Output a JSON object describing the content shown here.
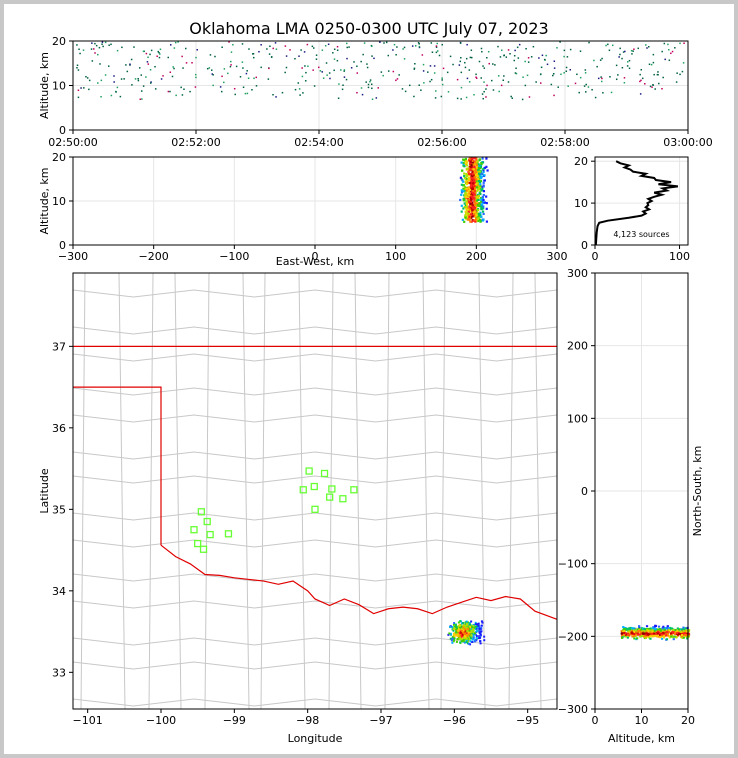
{
  "title": "Oklahoma LMA 0250-0300 UTC July 07, 2023",
  "chart_data": [
    {
      "panel": "time-altitude",
      "type": "scatter",
      "ylabel": "Altitude, km",
      "xlabel": "",
      "x_ticks": [
        "02:50:00",
        "02:52:00",
        "02:54:00",
        "02:56:00",
        "02:58:00",
        "03:00:00"
      ],
      "y_ticks": [
        "0",
        "10",
        "20"
      ],
      "ylim": [
        0,
        20
      ],
      "xlim": [
        "02:50:00",
        "03:00:00"
      ],
      "altitude_band_km": [
        7,
        20
      ],
      "grid": true
    },
    {
      "panel": "east-west-altitude",
      "type": "heatmap",
      "xlabel": "East-West, km",
      "ylabel": "Altitude, km",
      "x_ticks": [
        "−300",
        "−200",
        "−100",
        "0",
        "100",
        "200",
        "300"
      ],
      "y_ticks": [
        "0",
        "10",
        "20"
      ],
      "xlim": [
        -300,
        300
      ],
      "ylim": [
        0,
        20
      ],
      "cluster": {
        "x_range_km": [
          175,
          215
        ],
        "alt_range_km": [
          5,
          20
        ],
        "core_x_km": 193
      },
      "grid": true
    },
    {
      "panel": "altitude-histogram",
      "type": "line",
      "x_ticks": [
        "0",
        "100"
      ],
      "y_ticks": [
        "0",
        "10",
        "20"
      ],
      "xlim": [
        0,
        110
      ],
      "ylim": [
        0,
        21
      ],
      "annotation": "4,123 sources",
      "profile": [
        {
          "alt": 0.0,
          "count": 1
        },
        {
          "alt": 3.0,
          "count": 2
        },
        {
          "alt": 4.5,
          "count": 3
        },
        {
          "alt": 5.3,
          "count": 5
        },
        {
          "alt": 5.8,
          "count": 15
        },
        {
          "alt": 6.5,
          "count": 40
        },
        {
          "alt": 7.0,
          "count": 55
        },
        {
          "alt": 7.5,
          "count": 60
        },
        {
          "alt": 8.0,
          "count": 57
        },
        {
          "alt": 8.5,
          "count": 64
        },
        {
          "alt": 9.0,
          "count": 60
        },
        {
          "alt": 9.5,
          "count": 63
        },
        {
          "alt": 10.0,
          "count": 62
        },
        {
          "alt": 10.5,
          "count": 67
        },
        {
          "alt": 11.0,
          "count": 63
        },
        {
          "alt": 11.5,
          "count": 70
        },
        {
          "alt": 12.0,
          "count": 79
        },
        {
          "alt": 12.5,
          "count": 70
        },
        {
          "alt": 13.0,
          "count": 85
        },
        {
          "alt": 13.5,
          "count": 80
        },
        {
          "alt": 14.0,
          "count": 98
        },
        {
          "alt": 14.5,
          "count": 75
        },
        {
          "alt": 15.0,
          "count": 90
        },
        {
          "alt": 15.5,
          "count": 72
        },
        {
          "alt": 16.0,
          "count": 70
        },
        {
          "alt": 16.5,
          "count": 55
        },
        {
          "alt": 17.0,
          "count": 60
        },
        {
          "alt": 17.5,
          "count": 45
        },
        {
          "alt": 18.0,
          "count": 42
        },
        {
          "alt": 18.5,
          "count": 35
        },
        {
          "alt": 19.0,
          "count": 40
        },
        {
          "alt": 19.5,
          "count": 30
        },
        {
          "alt": 20.0,
          "count": 25
        }
      ]
    },
    {
      "panel": "plan-view-map",
      "type": "scatter",
      "xlabel": "Longitude",
      "ylabel": "Latitude",
      "x_ticks": [
        "−101",
        "−100",
        "−99",
        "−98",
        "−97",
        "−96",
        "−95"
      ],
      "y_ticks": [
        "33",
        "34",
        "35",
        "36",
        "37"
      ],
      "xlim": [
        -101.2,
        -94.6
      ],
      "ylim": [
        32.55,
        37.9
      ],
      "stations": [
        {
          "lon": -99.55,
          "lat": 34.75
        },
        {
          "lon": -99.45,
          "lat": 34.97
        },
        {
          "lon": -99.37,
          "lat": 34.85
        },
        {
          "lon": -99.33,
          "lat": 34.69
        },
        {
          "lon": -99.5,
          "lat": 34.58
        },
        {
          "lon": -99.42,
          "lat": 34.51
        },
        {
          "lon": -99.08,
          "lat": 34.7
        },
        {
          "lon": -97.98,
          "lat": 35.47
        },
        {
          "lon": -97.77,
          "lat": 35.44
        },
        {
          "lon": -98.06,
          "lat": 35.24
        },
        {
          "lon": -97.91,
          "lat": 35.28
        },
        {
          "lon": -97.67,
          "lat": 35.25
        },
        {
          "lon": -97.7,
          "lat": 35.15
        },
        {
          "lon": -97.52,
          "lat": 35.13
        },
        {
          "lon": -97.37,
          "lat": 35.24
        },
        {
          "lon": -97.9,
          "lat": 35.0
        }
      ],
      "lightning_cluster": {
        "lon_range": [
          -96.1,
          -95.6
        ],
        "lat_range": [
          33.35,
          33.65
        ],
        "core": [
          -95.9,
          33.5
        ]
      },
      "grid": false
    },
    {
      "panel": "altitude-north-south",
      "type": "heatmap",
      "xlabel": "Altitude, km",
      "ylabel": "North-South, km",
      "x_ticks": [
        "0",
        "10",
        "20"
      ],
      "y_ticks": [
        "300",
        "200",
        "100",
        "0",
        "−100",
        "−200",
        "−300"
      ],
      "xlim": [
        0,
        20
      ],
      "ylim": [
        -300,
        300
      ],
      "cluster": {
        "alt_range_km": [
          5,
          20
        ],
        "ns_range_km": [
          -205,
          -182
        ],
        "core_ns_km": -195
      },
      "grid": true
    }
  ]
}
